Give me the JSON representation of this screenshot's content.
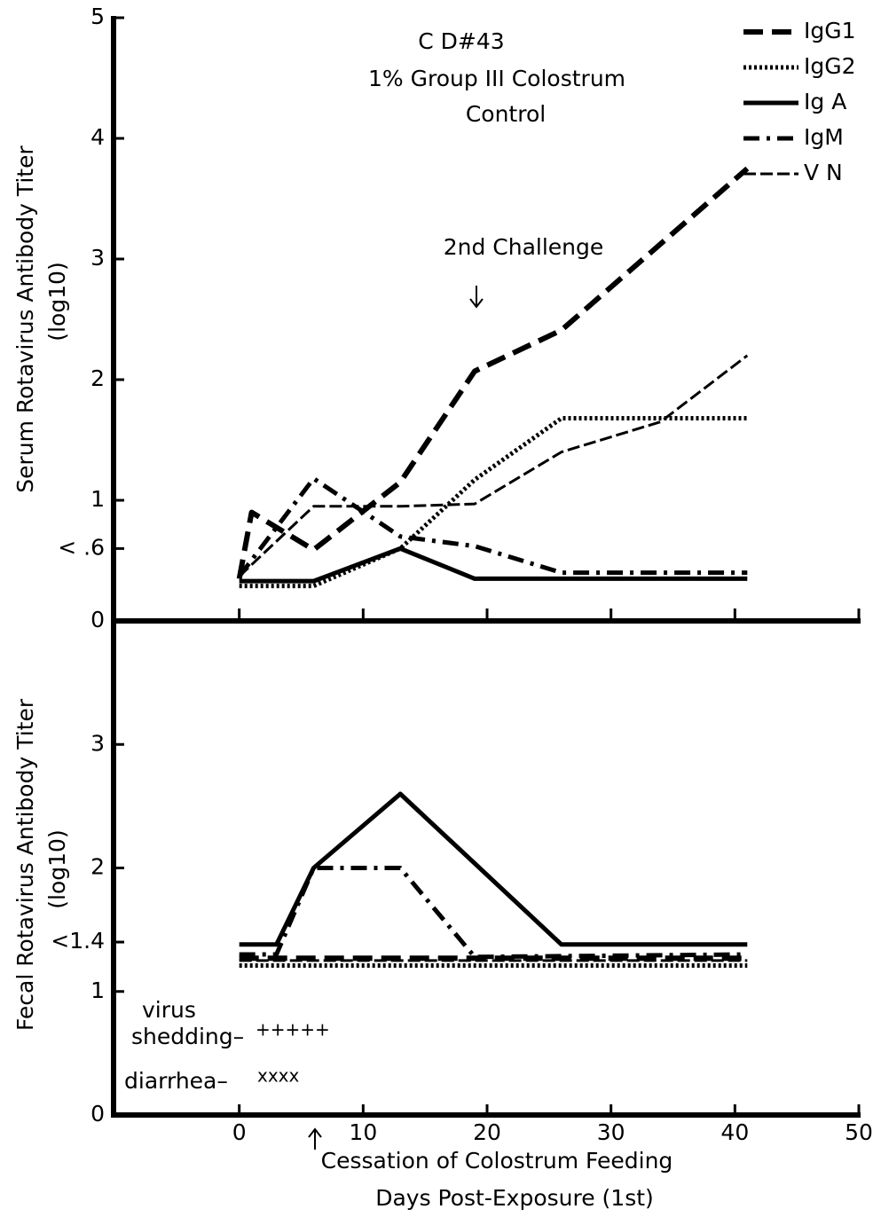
{
  "chart_data": [
    {
      "type": "line",
      "title_lines": [
        "C D#43",
        "1% Group III Colostrum",
        "Control"
      ],
      "annotation": "2nd Challenge",
      "ylabel": "Serum Rotavirus Antibody Titer",
      "ylabel_unit": "(log10)",
      "xlim": [
        -10,
        50
      ],
      "ylim": [
        0,
        5
      ],
      "yticks": [
        0,
        {
          "value": 0.6,
          "label": "< .6"
        },
        1,
        2,
        3,
        4,
        5
      ],
      "legend": "upper right",
      "series": [
        {
          "name": "IgG1",
          "color": "#000000",
          "dash": "dashed",
          "x": [
            0,
            1,
            6,
            13,
            19,
            26,
            41
          ],
          "values": [
            0.35,
            0.9,
            0.59,
            1.15,
            2.07,
            2.41,
            3.75
          ]
        },
        {
          "name": "IgG2",
          "color": "#000000",
          "dash": "dotted",
          "x": [
            0,
            6,
            13,
            19,
            26,
            41
          ],
          "values": [
            0.29,
            0.29,
            0.6,
            1.17,
            1.68,
            1.68
          ]
        },
        {
          "name": "Ig A",
          "color": "#000000",
          "dash": "solid",
          "x": [
            0,
            6,
            13,
            19,
            26,
            41
          ],
          "values": [
            0.33,
            0.33,
            0.6,
            0.35,
            0.35,
            0.35
          ]
        },
        {
          "name": "IgM",
          "color": "#000000",
          "dash": "dashdot",
          "x": [
            0,
            6,
            13,
            19,
            26,
            41
          ],
          "values": [
            0.37,
            1.18,
            0.7,
            0.62,
            0.4,
            0.4
          ]
        },
        {
          "name": "V N",
          "color": "#000000",
          "dash": "hatched",
          "x": [
            0,
            6,
            13,
            19,
            26,
            34,
            41
          ],
          "values": [
            0.37,
            0.95,
            0.95,
            0.97,
            1.4,
            1.65,
            2.2
          ]
        }
      ]
    },
    {
      "type": "line",
      "ylabel": "Fecal Rotavirus Antibody Titer",
      "ylabel_unit": "(log10)",
      "xlabel": "Days Post-Exposure (1st)",
      "annotations": [
        "virus",
        "shedding–",
        "+++++",
        "diarrhea–",
        "xxxx",
        "Cessation of Colostrum Feeding"
      ],
      "xlim": [
        -10,
        50
      ],
      "ylim": [
        0,
        4
      ],
      "xticks": [
        0,
        10,
        20,
        30,
        40,
        50
      ],
      "yticks": [
        0,
        1,
        {
          "value": 1.4,
          "label": "<1.4"
        },
        2,
        3
      ],
      "series": [
        {
          "name": "IgG1",
          "color": "#000000",
          "dash": "dashed",
          "x": [
            0,
            41
          ],
          "values": [
            1.27,
            1.27
          ]
        },
        {
          "name": "IgG2",
          "color": "#000000",
          "dash": "dotted",
          "x": [
            0,
            41
          ],
          "values": [
            1.21,
            1.21
          ]
        },
        {
          "name": "Ig A",
          "color": "#000000",
          "dash": "solid",
          "x": [
            0,
            3,
            6,
            13,
            26,
            41
          ],
          "values": [
            1.38,
            1.38,
            2.0,
            2.6,
            1.38,
            1.38
          ]
        },
        {
          "name": "IgM",
          "color": "#000000",
          "dash": "dashdot",
          "x": [
            0,
            3,
            6,
            13,
            19,
            41
          ],
          "values": [
            1.3,
            1.3,
            2.0,
            2.0,
            1.28,
            1.3
          ]
        },
        {
          "name": "V N",
          "color": "#000000",
          "dash": "hatched",
          "x": [
            0,
            41
          ],
          "values": [
            1.25,
            1.25
          ]
        }
      ]
    }
  ]
}
